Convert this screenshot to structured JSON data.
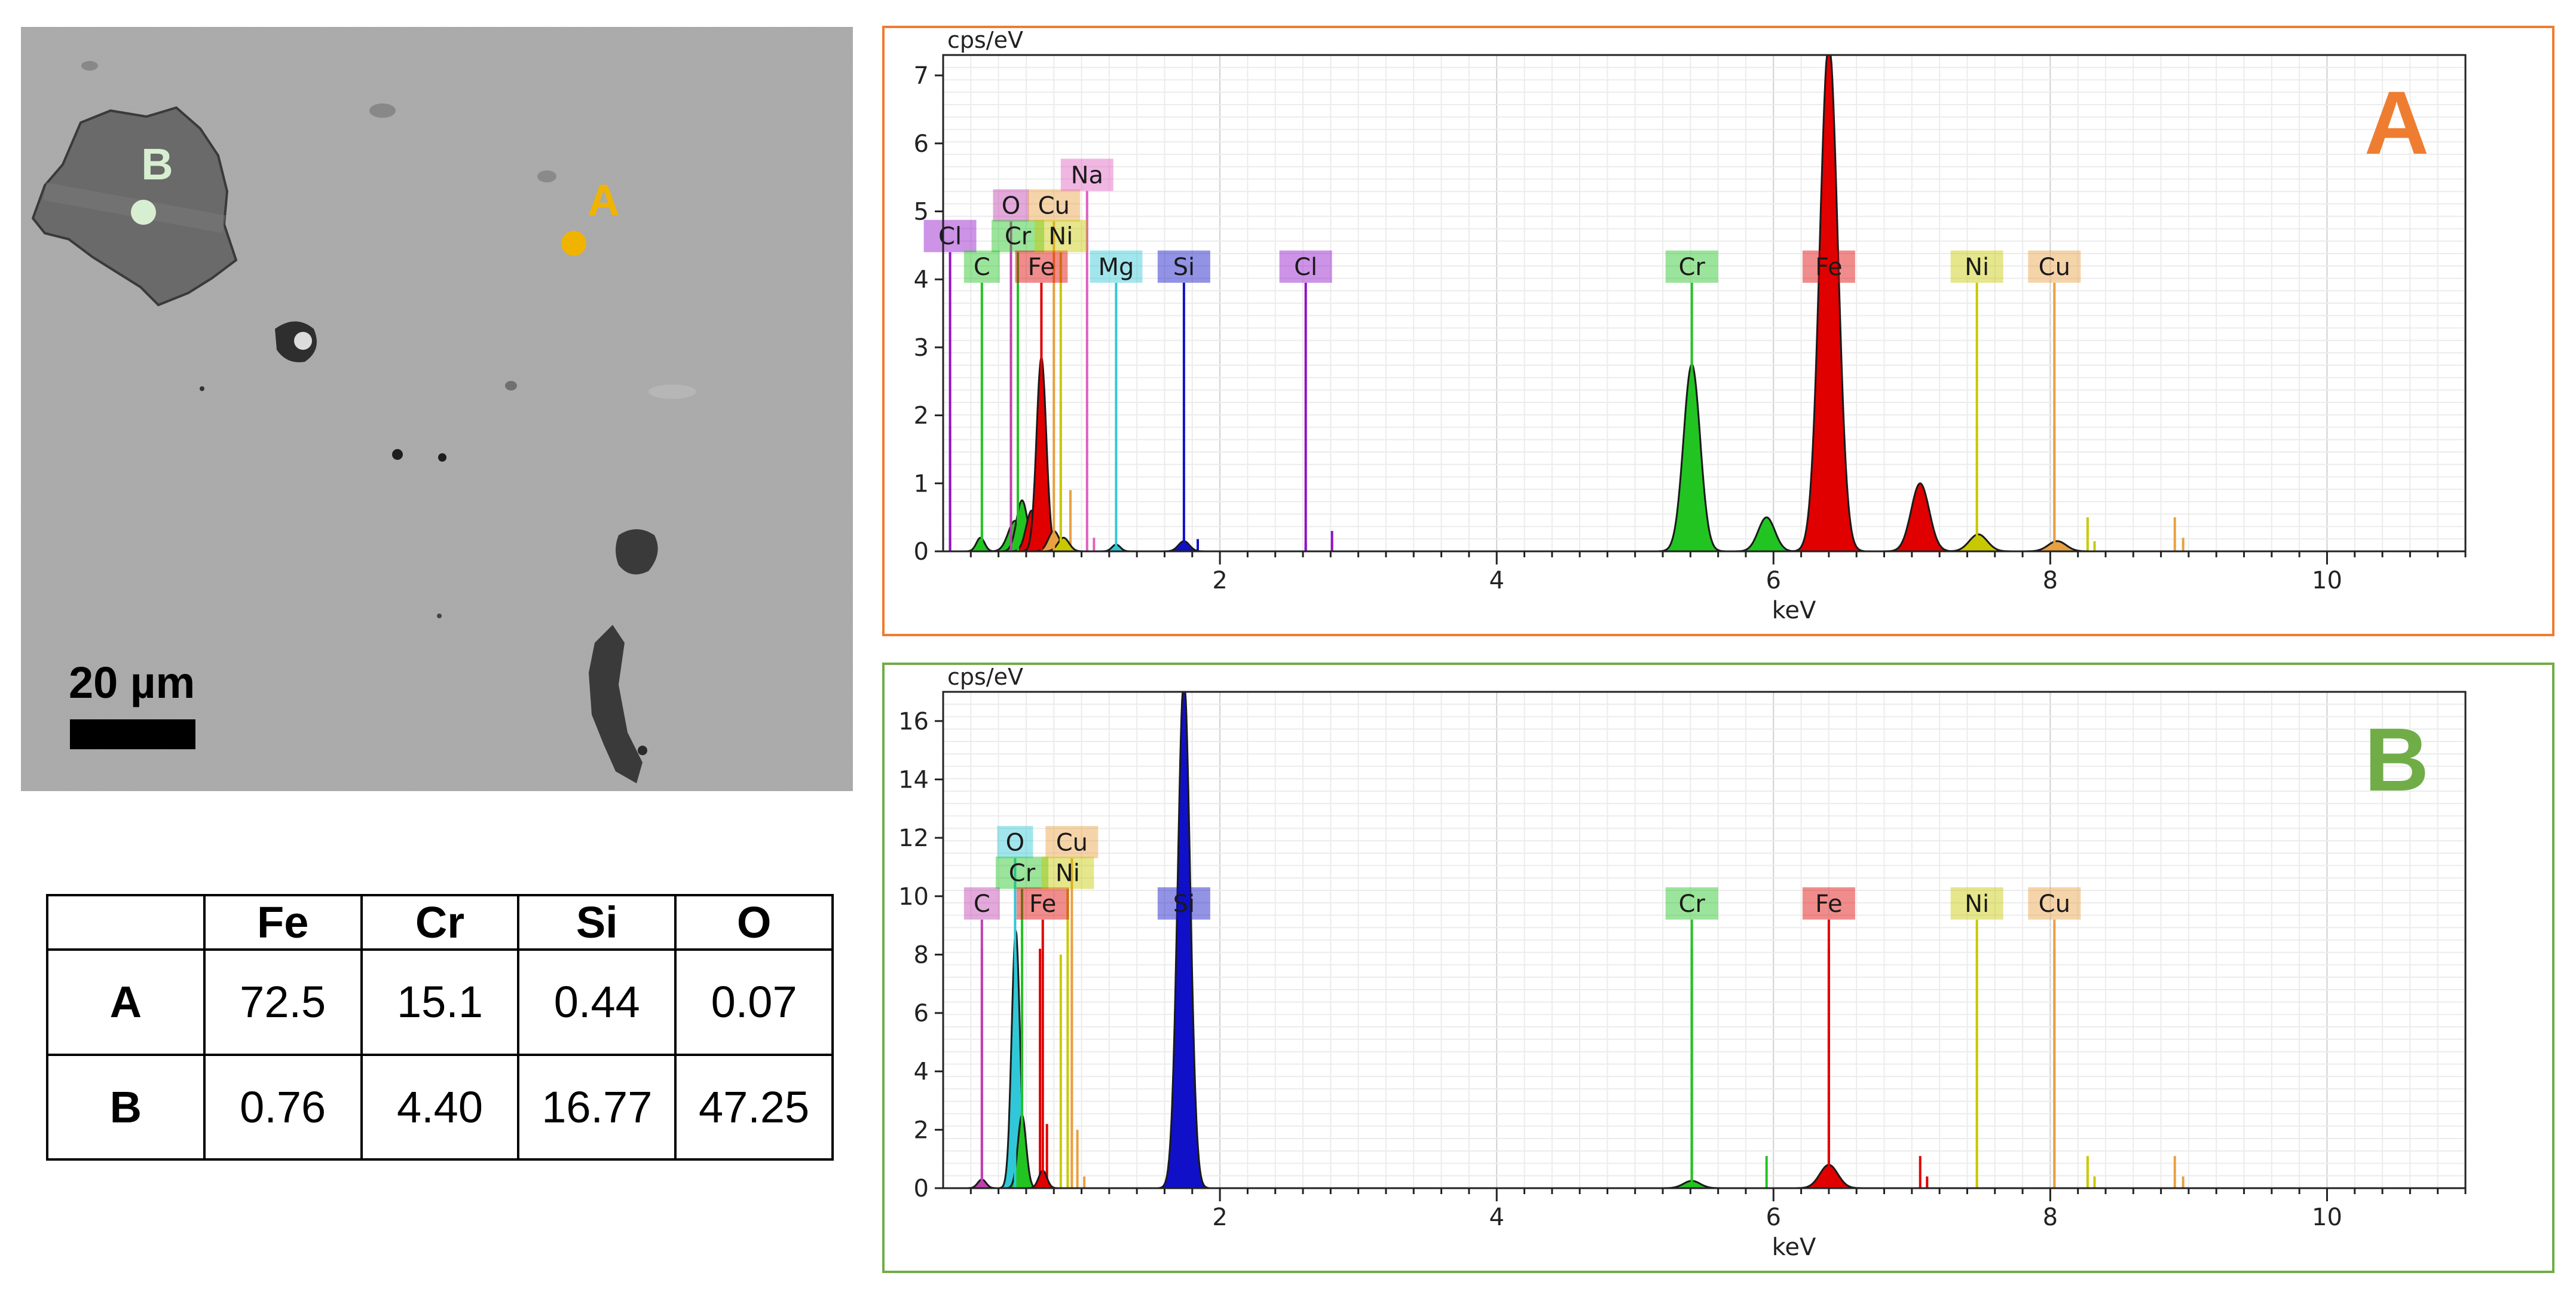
{
  "sem_image": {
    "scale_bar_label": "20 µm",
    "points": [
      {
        "label": "A",
        "color": "#f0b400"
      },
      {
        "label": "B",
        "color": "#d7efd0"
      }
    ]
  },
  "composition_table": {
    "headers": [
      "",
      "Fe",
      "Cr",
      "Si",
      "O"
    ],
    "rows": [
      {
        "label": "A",
        "values": [
          "72.5",
          "15.1",
          "0.44",
          "0.07"
        ]
      },
      {
        "label": "B",
        "values": [
          "0.76",
          "4.40",
          "16.77",
          "47.25"
        ]
      }
    ]
  },
  "chart_data": [
    {
      "type": "line",
      "title": "A",
      "title_color": "#ee7d31",
      "frame_color": "#ee7d31",
      "ylabel": "cps/eV",
      "xlabel": "keV",
      "xlim": [
        0,
        11
      ],
      "ylim": [
        0,
        7.3
      ],
      "xticks": [
        2,
        4,
        6,
        8,
        10
      ],
      "yticks": [
        0,
        1,
        2,
        3,
        4,
        5,
        6,
        7
      ],
      "peaks": [
        {
          "x": 0.27,
          "y": 0.2,
          "w": 0.03,
          "color": "#22c422"
        },
        {
          "x": 0.52,
          "y": 0.45,
          "w": 0.05,
          "color": "#22c422"
        },
        {
          "x": 0.57,
          "y": 0.75,
          "w": 0.04,
          "color": "#22c422"
        },
        {
          "x": 0.64,
          "y": 0.6,
          "w": 0.04,
          "color": "#e00000"
        },
        {
          "x": 0.71,
          "y": 2.85,
          "w": 0.035,
          "color": "#e00000"
        },
        {
          "x": 0.8,
          "y": 0.3,
          "w": 0.04,
          "color": "#e8a040"
        },
        {
          "x": 0.87,
          "y": 0.2,
          "w": 0.04,
          "color": "#c8c800"
        },
        {
          "x": 1.25,
          "y": 0.1,
          "w": 0.03,
          "color": "#30c8d8"
        },
        {
          "x": 1.74,
          "y": 0.15,
          "w": 0.04,
          "color": "#1010c8"
        },
        {
          "x": 5.41,
          "y": 2.75,
          "w": 0.06,
          "color": "#22c422"
        },
        {
          "x": 5.95,
          "y": 0.5,
          "w": 0.06,
          "color": "#22c422"
        },
        {
          "x": 6.4,
          "y": 7.5,
          "w": 0.065,
          "color": "#e00000"
        },
        {
          "x": 7.06,
          "y": 1.0,
          "w": 0.065,
          "color": "#e00000"
        },
        {
          "x": 7.48,
          "y": 0.25,
          "w": 0.065,
          "color": "#c8c800"
        },
        {
          "x": 8.05,
          "y": 0.15,
          "w": 0.065,
          "color": "#e8a040"
        }
      ],
      "lines": [
        {
          "x": 0.05,
          "y": 1.85,
          "color": "#9010c8"
        },
        {
          "x": 0.28,
          "y": 0.3,
          "color": "#22c422"
        },
        {
          "x": 0.49,
          "y": 3.2,
          "color": "#c040b0"
        },
        {
          "x": 0.54,
          "y": 2.9,
          "color": "#22c422"
        },
        {
          "x": 0.85,
          "y": 2.2,
          "color": "#c8c800"
        },
        {
          "x": 0.92,
          "y": 0.9,
          "color": "#e8a040"
        },
        {
          "x": 1.09,
          "y": 0.2,
          "color": "#e060c0"
        },
        {
          "x": 1.74,
          "y": 0.2,
          "color": "#1010c8"
        },
        {
          "x": 1.84,
          "y": 0.18,
          "color": "#1010c8"
        },
        {
          "x": 2.62,
          "y": 0.12,
          "color": "#9010c8"
        },
        {
          "x": 2.81,
          "y": 0.3,
          "color": "#9010c8"
        },
        {
          "x": 7.47,
          "y": 1.85,
          "color": "#c8c800"
        },
        {
          "x": 8.03,
          "y": 1.85,
          "color": "#e8a040"
        },
        {
          "x": 8.27,
          "y": 0.5,
          "color": "#c8c800"
        },
        {
          "x": 8.32,
          "y": 0.15,
          "color": "#c8c800"
        },
        {
          "x": 8.9,
          "y": 0.5,
          "color": "#e8a040"
        },
        {
          "x": 8.96,
          "y": 0.2,
          "color": "#e8a040"
        }
      ],
      "annotations": [
        {
          "label": "Cl",
          "x": 0.05,
          "y": 4.4,
          "color": "#9010c8"
        },
        {
          "label": "C",
          "x": 0.28,
          "y": 3.95,
          "color": "#22c422"
        },
        {
          "label": "O",
          "x": 0.49,
          "y": 4.85,
          "color": "#c040b0"
        },
        {
          "label": "Cr",
          "x": 0.54,
          "y": 4.4,
          "color": "#22c422"
        },
        {
          "label": "Fe",
          "x": 0.71,
          "y": 3.95,
          "color": "#e00000"
        },
        {
          "label": "Cu",
          "x": 0.8,
          "y": 4.85,
          "color": "#e8a040"
        },
        {
          "label": "Ni",
          "x": 0.85,
          "y": 4.4,
          "color": "#c8c800"
        },
        {
          "label": "Na",
          "x": 1.04,
          "y": 5.3,
          "color": "#e060c0"
        },
        {
          "label": "Mg",
          "x": 1.25,
          "y": 3.95,
          "color": "#30c8d8"
        },
        {
          "label": "Si",
          "x": 1.74,
          "y": 3.95,
          "color": "#1010c8"
        },
        {
          "label": "Cl",
          "x": 2.62,
          "y": 3.95,
          "color": "#9010c8"
        },
        {
          "label": "Cr",
          "x": 5.41,
          "y": 3.95,
          "color": "#22c422"
        },
        {
          "label": "Fe",
          "x": 6.4,
          "y": 3.95,
          "color": "#e00000"
        },
        {
          "label": "Ni",
          "x": 7.47,
          "y": 3.95,
          "color": "#c8c800"
        },
        {
          "label": "Cu",
          "x": 8.03,
          "y": 3.95,
          "color": "#e8a040"
        }
      ]
    },
    {
      "type": "line",
      "title": "B",
      "title_color": "#70ad47",
      "frame_color": "#70ad47",
      "ylabel": "cps/eV",
      "xlabel": "keV",
      "xlim": [
        0,
        11
      ],
      "ylim": [
        0,
        17
      ],
      "xticks": [
        2,
        4,
        6,
        8,
        10
      ],
      "yticks": [
        0,
        2,
        4,
        6,
        8,
        10,
        12,
        14,
        16
      ],
      "peaks": [
        {
          "x": 0.28,
          "y": 0.3,
          "w": 0.03,
          "color": "#c040b0"
        },
        {
          "x": 0.525,
          "y": 8.8,
          "w": 0.03,
          "color": "#30c8d8"
        },
        {
          "x": 0.57,
          "y": 2.5,
          "w": 0.03,
          "color": "#22c422"
        },
        {
          "x": 0.72,
          "y": 0.6,
          "w": 0.03,
          "color": "#e00000"
        },
        {
          "x": 1.74,
          "y": 17.5,
          "w": 0.045,
          "color": "#1010c8"
        },
        {
          "x": 5.41,
          "y": 0.25,
          "w": 0.06,
          "color": "#22c422"
        },
        {
          "x": 6.4,
          "y": 0.8,
          "w": 0.065,
          "color": "#e00000"
        }
      ],
      "lines": [
        {
          "x": 0.28,
          "y": 8.2,
          "color": "#c040b0"
        },
        {
          "x": 0.57,
          "y": 9.0,
          "color": "#22c422"
        },
        {
          "x": 0.7,
          "y": 8.2,
          "color": "#e00000"
        },
        {
          "x": 0.75,
          "y": 2.2,
          "color": "#e00000"
        },
        {
          "x": 0.85,
          "y": 8.0,
          "color": "#c8c800"
        },
        {
          "x": 0.93,
          "y": 8.3,
          "color": "#e8a040"
        },
        {
          "x": 0.97,
          "y": 2.0,
          "color": "#e8a040"
        },
        {
          "x": 1.02,
          "y": 0.4,
          "color": "#e8a040"
        },
        {
          "x": 5.41,
          "y": 8.2,
          "color": "#22c422"
        },
        {
          "x": 5.95,
          "y": 1.1,
          "color": "#22c422"
        },
        {
          "x": 6.4,
          "y": 8.2,
          "color": "#e00000"
        },
        {
          "x": 7.06,
          "y": 1.1,
          "color": "#e00000"
        },
        {
          "x": 7.11,
          "y": 0.4,
          "color": "#e00000"
        },
        {
          "x": 7.47,
          "y": 8.2,
          "color": "#c8c800"
        },
        {
          "x": 8.03,
          "y": 8.2,
          "color": "#e8a040"
        },
        {
          "x": 8.27,
          "y": 1.1,
          "color": "#c8c800"
        },
        {
          "x": 8.32,
          "y": 0.4,
          "color": "#c8c800"
        },
        {
          "x": 8.9,
          "y": 1.1,
          "color": "#e8a040"
        },
        {
          "x": 8.96,
          "y": 0.4,
          "color": "#e8a040"
        }
      ],
      "annotations": [
        {
          "label": "C",
          "x": 0.28,
          "y": 9.2,
          "color": "#c040b0"
        },
        {
          "label": "O",
          "x": 0.52,
          "y": 11.3,
          "color": "#30c8d8"
        },
        {
          "label": "Cr",
          "x": 0.57,
          "y": 10.25,
          "color": "#22c422"
        },
        {
          "label": "Fe",
          "x": 0.72,
          "y": 9.2,
          "color": "#e00000"
        },
        {
          "label": "Cu",
          "x": 0.93,
          "y": 11.3,
          "color": "#e8a040"
        },
        {
          "label": "Ni",
          "x": 0.9,
          "y": 10.25,
          "color": "#c8c800"
        },
        {
          "label": "Si",
          "x": 1.74,
          "y": 9.2,
          "color": "#1010c8"
        },
        {
          "label": "Cr",
          "x": 5.41,
          "y": 9.2,
          "color": "#22c422"
        },
        {
          "label": "Fe",
          "x": 6.4,
          "y": 9.2,
          "color": "#e00000"
        },
        {
          "label": "Ni",
          "x": 7.47,
          "y": 9.2,
          "color": "#c8c800"
        },
        {
          "label": "Cu",
          "x": 8.03,
          "y": 9.2,
          "color": "#e8a040"
        }
      ]
    }
  ]
}
